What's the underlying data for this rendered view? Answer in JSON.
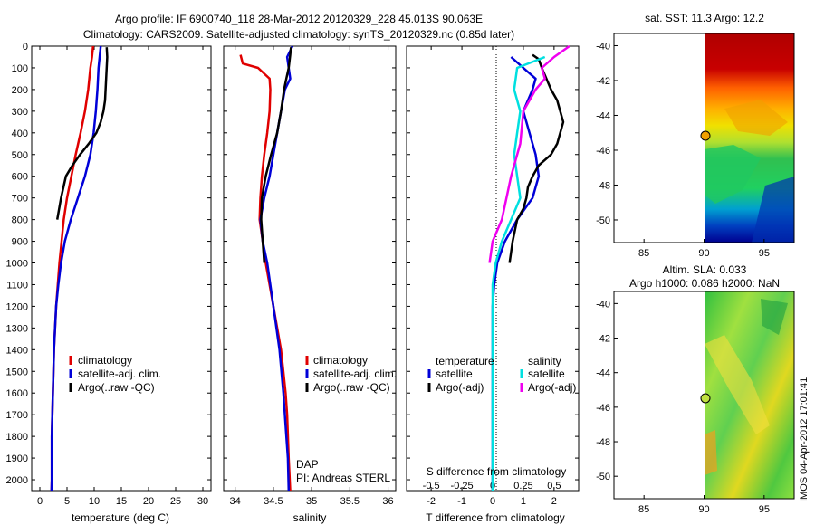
{
  "header": {
    "title_line1": "Argo profile: IF 6900740_118 28-Mar-2012 20120329_228 45.013S 90.063E",
    "title_line2": "Climatology: CARS2009. Satellite-adjusted climatology: synTS_20120329.nc (0.85d later)"
  },
  "colors": {
    "climatology": "#e00000",
    "satellite": "#0000d8",
    "argo": "#000000",
    "cyan": "#00e0e0",
    "magenta": "#f000f0"
  },
  "chart_data": [
    {
      "type": "line",
      "name": "temperature-profile",
      "xlabel": "temperature (deg C)",
      "xlim": [
        -1.5,
        31.5
      ],
      "ylim": [
        0,
        2050
      ],
      "yreversed": true,
      "xticks": [
        "0",
        "5",
        "10",
        "15",
        "20",
        "25",
        "30"
      ],
      "xtick_values": [
        0,
        5,
        10,
        15,
        20,
        25,
        30
      ],
      "yticks": [
        "0",
        "100",
        "200",
        "300",
        "400",
        "500",
        "600",
        "700",
        "800",
        "900",
        "1000",
        "1100",
        "1200",
        "1300",
        "1400",
        "1500",
        "1600",
        "1700",
        "1800",
        "1900",
        "2000"
      ],
      "ytick_values": [
        0,
        100,
        200,
        300,
        400,
        500,
        600,
        700,
        800,
        900,
        1000,
        1100,
        1200,
        1300,
        1400,
        1500,
        1600,
        1700,
        1800,
        1900,
        2000
      ],
      "legend": [
        "climatology",
        "satellite-adj. clim.",
        "Argo(..raw -QC)"
      ],
      "series": [
        {
          "name": "climatology",
          "color": "#e00000",
          "x": [
            9.8,
            9.6,
            9.3,
            8.9,
            8.3,
            7.5,
            6.6,
            5.8,
            5.0,
            4.4,
            4.0,
            3.6,
            3.3,
            3.0,
            2.8,
            2.6,
            2.5,
            2.4,
            2.3,
            2.2,
            2.2,
            2.15
          ],
          "y": [
            0,
            50,
            100,
            200,
            300,
            400,
            500,
            600,
            700,
            800,
            900,
            1000,
            1100,
            1200,
            1300,
            1400,
            1500,
            1600,
            1700,
            1800,
            2000,
            2050
          ]
        },
        {
          "name": "satellite",
          "color": "#0000d8",
          "x": [
            11.2,
            11.0,
            10.8,
            10.6,
            10.3,
            9.9,
            9.3,
            8.3,
            7.0,
            5.7,
            4.6,
            3.9,
            3.4,
            3.0,
            2.8,
            2.6,
            2.5,
            2.4,
            2.3,
            2.2,
            2.2,
            2.15
          ],
          "y": [
            0,
            50,
            100,
            200,
            300,
            400,
            500,
            600,
            700,
            800,
            900,
            1000,
            1100,
            1200,
            1300,
            1400,
            1500,
            1600,
            1700,
            1800,
            2000,
            2050
          ]
        },
        {
          "name": "argo",
          "color": "#000000",
          "x": [
            12.3,
            12.4,
            12.3,
            12.2,
            12.1,
            12.0,
            11.7,
            11.2,
            10.4,
            9.0,
            7.4,
            6.0,
            4.8,
            3.9,
            3.2
          ],
          "y": [
            5,
            50,
            100,
            150,
            200,
            250,
            300,
            350,
            400,
            450,
            500,
            550,
            600,
            700,
            800
          ]
        }
      ]
    },
    {
      "type": "line",
      "name": "salinity-profile",
      "xlabel": "salinity",
      "xlim": [
        33.85,
        36.1
      ],
      "ylim": [
        0,
        2050
      ],
      "yreversed": true,
      "xticks": [
        "34",
        "34.5",
        "35",
        "35.5",
        "36"
      ],
      "xtick_values": [
        34,
        34.5,
        35,
        35.5,
        36
      ],
      "legend": [
        "climatology",
        "satellite-adj. clim.",
        "Argo(..raw -QC)"
      ],
      "annotations": [
        "DAP",
        "PI: Andreas STERL"
      ],
      "series": [
        {
          "name": "climatology",
          "color": "#e00000",
          "x": [
            34.07,
            34.1,
            34.3,
            34.45,
            34.46,
            34.45,
            34.42,
            34.38,
            34.35,
            34.33,
            34.32,
            34.36,
            34.4,
            34.45,
            34.5,
            34.55,
            34.6,
            34.63,
            34.66,
            34.68,
            34.7,
            34.72
          ],
          "y": [
            40,
            80,
            100,
            150,
            200,
            300,
            400,
            500,
            600,
            700,
            800,
            900,
            1000,
            1100,
            1200,
            1300,
            1400,
            1500,
            1600,
            1700,
            1900,
            2050
          ]
        },
        {
          "name": "satellite",
          "color": "#0000d8",
          "x": [
            34.75,
            34.68,
            34.7,
            34.72,
            34.65,
            34.6,
            34.55,
            34.5,
            34.45,
            34.38,
            34.33,
            34.36,
            34.42,
            34.5,
            34.58,
            34.63,
            34.67,
            34.69,
            34.7
          ],
          "y": [
            0,
            50,
            100,
            150,
            200,
            300,
            400,
            500,
            600,
            700,
            800,
            900,
            1000,
            1200,
            1400,
            1600,
            1800,
            1900,
            2050
          ]
        },
        {
          "name": "argo",
          "color": "#000000",
          "x": [
            34.73,
            34.72,
            34.7,
            34.67,
            34.64,
            34.62,
            34.6,
            34.55,
            34.47,
            34.4,
            34.35,
            34.34,
            34.36,
            34.38
          ],
          "y": [
            5,
            40,
            100,
            150,
            200,
            250,
            300,
            400,
            500,
            600,
            700,
            800,
            900,
            1000
          ]
        }
      ]
    },
    {
      "type": "line",
      "name": "difference-profile",
      "xlabel": "T difference from climatology",
      "top_xlabel": "S difference from climatology",
      "xlim": [
        -2.8,
        2.8
      ],
      "ylim": [
        0,
        2050
      ],
      "yreversed": true,
      "xticks": [
        "-2",
        "-1",
        "0",
        "1",
        "2"
      ],
      "xtick_values": [
        -2,
        -1,
        0,
        1,
        2
      ],
      "top_xticks": [
        "-0.5",
        "-0.25",
        "0",
        "0.25",
        "0.5"
      ],
      "top_xtick_values": [
        -0.5,
        -0.25,
        0,
        0.25,
        0.5
      ],
      "legend_headers": [
        "temperature",
        "salinity"
      ],
      "legend": [
        "satellite",
        "Argo(-adj)",
        "satellite",
        "Argo(-adj)"
      ],
      "series": [
        {
          "name": "T satellite",
          "color": "#0000d8",
          "x": [
            0.6,
            1.0,
            1.4,
            1.3,
            1.0,
            1.2,
            1.4,
            1.5,
            1.3,
            0.8,
            0.4,
            0.15,
            0.05,
            0.0,
            0.0,
            0.0,
            0.0,
            0.0
          ],
          "y": [
            50,
            100,
            150,
            200,
            300,
            400,
            500,
            600,
            700,
            800,
            900,
            1000,
            1100,
            1200,
            1400,
            1600,
            1800,
            2050
          ]
        },
        {
          "name": "T argo",
          "color": "#000000",
          "x": [
            1.3,
            1.5,
            1.6,
            1.9,
            2.1,
            2.3,
            2.1,
            1.9,
            1.5,
            1.3,
            1.15,
            1.1,
            1.0,
            0.8,
            0.65,
            0.55
          ],
          "y": [
            40,
            60,
            100,
            200,
            250,
            350,
            450,
            500,
            550,
            600,
            650,
            700,
            750,
            800,
            900,
            1000
          ]
        },
        {
          "name": "S satellite",
          "color": "#00e0e0",
          "x": [
            1.7,
            0.8,
            0.7,
            0.9,
            0.8,
            0.7,
            0.8,
            0.9,
            0.6,
            0.3,
            0.1,
            0.0,
            0.0,
            0.0,
            0.0
          ],
          "y": [
            50,
            100,
            200,
            300,
            400,
            500,
            600,
            700,
            800,
            900,
            1000,
            1100,
            1400,
            1700,
            2050
          ]
        },
        {
          "name": "S argo",
          "color": "#f000f0",
          "x": [
            2.5,
            2.0,
            1.6,
            1.7,
            1.4,
            1.0,
            0.9,
            0.6,
            0.3,
            0.0,
            -0.1
          ],
          "y": [
            0,
            50,
            100,
            150,
            200,
            300,
            450,
            600,
            800,
            900,
            1000
          ]
        }
      ]
    },
    {
      "type": "heatmap",
      "name": "sst-map",
      "title": "sat. SST: 11.3 Argo: 12.2",
      "xticks": [
        "85",
        "90",
        "95"
      ],
      "xtick_values": [
        85,
        90,
        95
      ],
      "yticks": [
        "-40",
        "-42",
        "-44",
        "-46",
        "-48",
        "-50"
      ],
      "ytick_values": [
        -40,
        -42,
        -44,
        -46,
        -48,
        -50
      ],
      "xlim": [
        82.5,
        97.5
      ],
      "ylim": [
        -51.3,
        -39.3
      ],
      "marker": {
        "lon": 90.06,
        "lat": -45.01
      }
    },
    {
      "type": "heatmap",
      "name": "sla-map",
      "title": "Altim. SLA: 0.033",
      "subtitle": "Argo h1000: 0.086 h2000: NaN",
      "xticks": [
        "85",
        "90",
        "95"
      ],
      "xtick_values": [
        85,
        90,
        95
      ],
      "yticks": [
        "-40",
        "-42",
        "-44",
        "-46",
        "-48",
        "-50"
      ],
      "ytick_values": [
        -40,
        -42,
        -44,
        -46,
        -48,
        -50
      ],
      "xlim": [
        82.5,
        97.5
      ],
      "ylim": [
        -51.3,
        -39.3
      ],
      "marker": {
        "lon": 90.06,
        "lat": -45.01
      }
    }
  ],
  "side_label": "IMOS 04-Apr-2012 17:01:41"
}
